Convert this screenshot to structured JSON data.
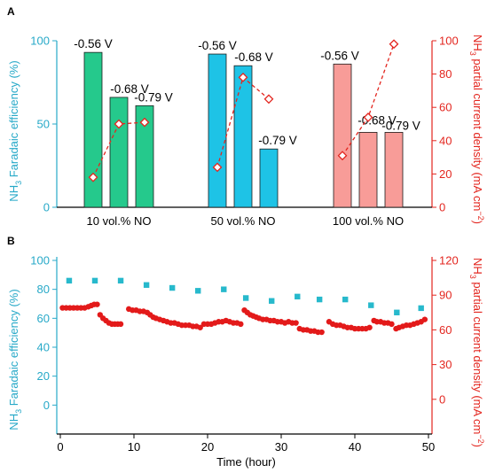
{
  "colors": {
    "left_axis": "#27a9c8",
    "right_axis": "#e3261f",
    "bar_green": "#25c98c",
    "bar_blue": "#1ec3e6",
    "bar_pink": "#f89c98",
    "scatter_square": "#27b9cc",
    "scatter_dot": "#e31a1a"
  },
  "chart_data": [
    {
      "panel": "A",
      "type": "bar",
      "left_axis": {
        "label_pre": "NH",
        "label_sub": "3",
        "label_post": " Faradaic efficiency (%)",
        "ylim": [
          0,
          100
        ],
        "ticks": [
          "0",
          "50",
          "100"
        ]
      },
      "right_axis": {
        "label_pre": "NH",
        "label_sub": "3",
        "label_mid": " partial current density (mA cm",
        "label_sup": "−2",
        "label_post": ")",
        "ylim": [
          0,
          100
        ],
        "ticks": [
          "0",
          "20",
          "40",
          "60",
          "80",
          "100"
        ]
      },
      "groups": [
        {
          "label": "10 vol.% NO",
          "color_key": "bar_green",
          "bars": [
            {
              "potential": "-0.56 V",
              "fe": 93,
              "jd": 18
            },
            {
              "potential": "-0.68 V",
              "fe": 66,
              "jd": 50
            },
            {
              "potential": "-0.79 V",
              "fe": 61,
              "jd": 51
            }
          ]
        },
        {
          "label": "50 vol.% NO",
          "color_key": "bar_blue",
          "bars": [
            {
              "potential": "-0.56 V",
              "fe": 92,
              "jd": 24
            },
            {
              "potential": "-0.68 V",
              "fe": 85,
              "jd": 78
            },
            {
              "potential": "-0.79 V",
              "fe": 35,
              "jd": 65
            }
          ]
        },
        {
          "label": "100 vol.% NO",
          "color_key": "bar_pink",
          "bars": [
            {
              "potential": "-0.56 V",
              "fe": 86,
              "jd": 31
            },
            {
              "potential": "-0.68 V",
              "fe": 45,
              "jd": 54
            },
            {
              "potential": "-0.79 V",
              "fe": 45,
              "jd": 98
            }
          ]
        }
      ]
    },
    {
      "panel": "B",
      "type": "scatter",
      "xlabel": "Time (hour)",
      "xlim": [
        0,
        50
      ],
      "xticks": [
        "0",
        "10",
        "20",
        "30",
        "40",
        "50"
      ],
      "left_axis": {
        "label_pre": "NH",
        "label_sub": "3",
        "label_post": " Faradaic efficiency (%)",
        "ylim": [
          -20,
          100
        ],
        "ticks": [
          "0",
          "20",
          "40",
          "60",
          "80",
          "100"
        ]
      },
      "right_axis": {
        "label_pre": "NH",
        "label_sub": "3",
        "label_mid": " partial current density (mA cm",
        "label_sup": "−2",
        "label_post": ")",
        "ylim": [
          -30,
          120
        ],
        "ticks": [
          "0",
          "30",
          "60",
          "90",
          "120"
        ]
      },
      "series": [
        {
          "axis": "left",
          "marker": "square",
          "color_key": "scatter_square",
          "x": [
            1.2,
            4.7,
            8.2,
            11.7,
            15.2,
            18.7,
            22.2,
            25.2,
            28.7,
            32.2,
            35.2,
            38.7,
            42.2,
            45.7,
            49.0
          ],
          "y": [
            86,
            86,
            86,
            83,
            81,
            79,
            80,
            74,
            72,
            75,
            73,
            73,
            69,
            64,
            67
          ]
        },
        {
          "axis": "right",
          "marker": "circle",
          "color_key": "scatter_dot",
          "x": [
            0.3,
            0.8,
            1.3,
            1.8,
            2.3,
            2.8,
            3.3,
            3.8,
            4.2,
            4.6,
            5.0,
            5.4,
            5.8,
            6.2,
            6.6,
            7.0,
            7.4,
            7.8,
            8.2,
            9.3,
            9.8,
            10.3,
            10.8,
            11.3,
            11.8,
            12.2,
            12.6,
            13.0,
            13.5,
            14.0,
            14.5,
            15.0,
            15.5,
            16.0,
            16.5,
            17.0,
            17.5,
            18.0,
            18.5,
            19.0,
            19.5,
            20.0,
            20.5,
            21.0,
            21.5,
            22.0,
            22.5,
            23.0,
            23.5,
            24.0,
            24.5,
            25.0,
            25.4,
            25.8,
            26.2,
            26.6,
            27.0,
            27.5,
            28.0,
            28.5,
            29.0,
            29.5,
            30.0,
            30.5,
            31.0,
            31.5,
            32.0,
            32.5,
            33.0,
            33.5,
            34.0,
            34.5,
            35.0,
            35.5,
            36.5,
            37.0,
            37.5,
            38.0,
            38.5,
            39.0,
            39.5,
            40.0,
            40.5,
            41.0,
            41.5,
            42.0,
            42.6,
            43.0,
            43.5,
            44.0,
            44.5,
            45.0,
            45.6,
            46.0,
            46.5,
            47.0,
            47.5,
            48.0,
            48.5,
            49.0,
            49.5
          ],
          "y": [
            79,
            79,
            79,
            79,
            79,
            79,
            79,
            80,
            81,
            82,
            82,
            73,
            70,
            68,
            66,
            65,
            65,
            65,
            65,
            78,
            77,
            77,
            76,
            76,
            75,
            73,
            71,
            70,
            69,
            68,
            67,
            66,
            66,
            65,
            64,
            64,
            64,
            63,
            63,
            62,
            65,
            65,
            65,
            66,
            67,
            67,
            68,
            67,
            66,
            66,
            65,
            77,
            75,
            73,
            72,
            71,
            70,
            69,
            69,
            68,
            68,
            67,
            67,
            66,
            67,
            66,
            66,
            61,
            60,
            60,
            59,
            59,
            58,
            58,
            67,
            65,
            64,
            64,
            63,
            62,
            62,
            61,
            61,
            61,
            61,
            62,
            68,
            67,
            67,
            66,
            66,
            65,
            61,
            62,
            63,
            64,
            64,
            65,
            66,
            67,
            69
          ]
        }
      ]
    }
  ]
}
